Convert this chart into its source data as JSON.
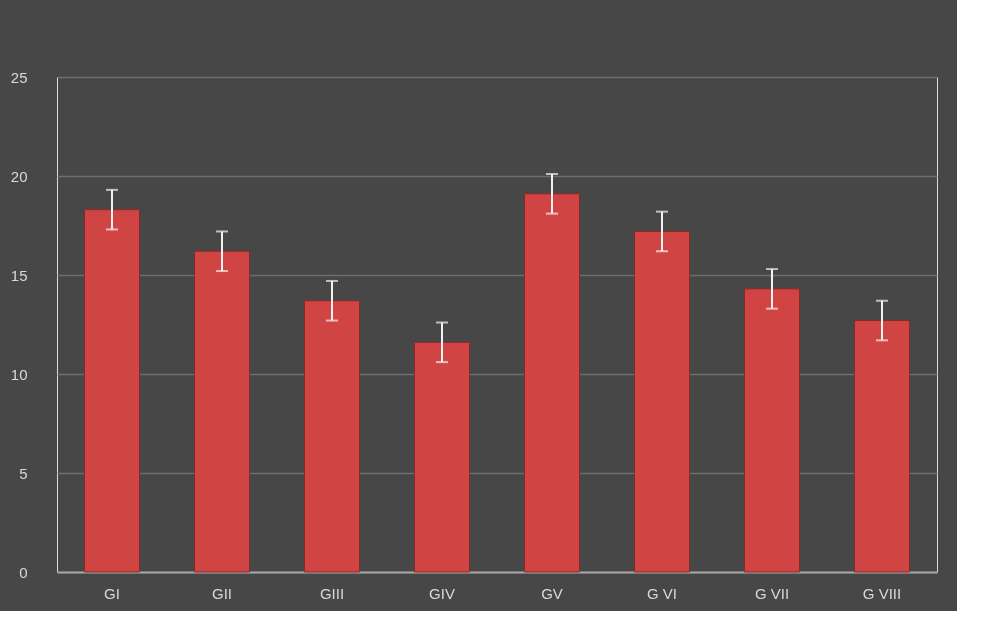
{
  "chart_data": {
    "type": "bar",
    "categories": [
      "GI",
      "GII",
      "GIII",
      "GIV",
      "GV",
      "G VI",
      "G VII",
      "G VIII"
    ],
    "values": [
      18.3,
      16.2,
      13.7,
      11.6,
      19.1,
      17.2,
      14.3,
      12.7
    ],
    "errors": [
      1,
      1,
      1,
      1,
      1,
      1,
      1,
      1
    ],
    "color": "#d04543",
    "ylim": [
      0,
      25
    ],
    "yticks": [
      0,
      5,
      10,
      15,
      20,
      25
    ],
    "grid": "y"
  }
}
